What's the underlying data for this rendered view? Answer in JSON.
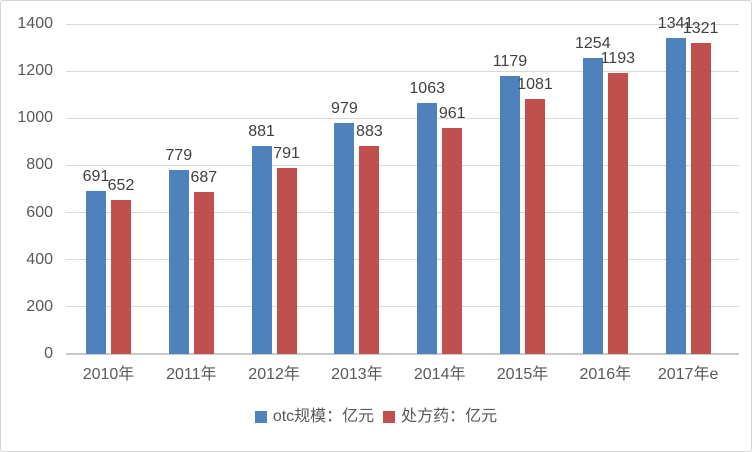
{
  "chart_data": {
    "type": "bar",
    "title": "",
    "xlabel": "",
    "ylabel": "",
    "categories": [
      "2010年",
      "2011年",
      "2012年",
      "2013年",
      "2014年",
      "2015年",
      "2016年",
      "2017年e"
    ],
    "series": [
      {
        "name": "otc规模：亿元",
        "color": "#4F81BD",
        "values": [
          691,
          779,
          881,
          979,
          1063,
          1179,
          1254,
          1341
        ]
      },
      {
        "name": "处方药：亿元",
        "color": "#C0504D",
        "values": [
          652,
          687,
          791,
          883,
          961,
          1081,
          1193,
          1321
        ]
      }
    ],
    "ylim": [
      0,
      1400
    ],
    "ytick_step": 200,
    "grid": true,
    "data_labels": true,
    "legend_position": "bottom"
  },
  "colors": {
    "background": "#FFFFFF",
    "border": "#D4D4D4",
    "gridline": "#D9D9D9",
    "axis_line": "#C9C9C9",
    "axis_text": "#595959",
    "value_label_text": "#404040",
    "legend_text": "#595959"
  }
}
